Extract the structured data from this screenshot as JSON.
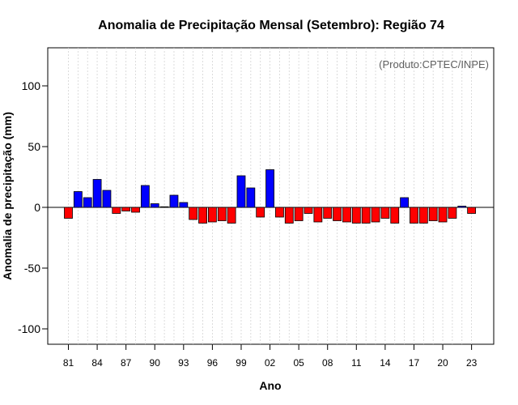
{
  "chart_data": {
    "type": "bar",
    "title": "Anomalia de Precipitação Mensal (Setembro): Região 74",
    "xlabel": "Ano",
    "ylabel": "Anomalia de precipitação (mm)",
    "annotation": "(Produto:CPTEC/INPE)",
    "ylim": [
      -113,
      132
    ],
    "yticks": [
      -100,
      -50,
      0,
      50,
      100
    ],
    "xtick_labels": [
      "81",
      "84",
      "87",
      "90",
      "93",
      "96",
      "99",
      "02",
      "05",
      "08",
      "11",
      "14",
      "17",
      "20",
      "23"
    ],
    "categories": [
      "1981",
      "1982",
      "1983",
      "1984",
      "1985",
      "1986",
      "1987",
      "1988",
      "1989",
      "1990",
      "1991",
      "1992",
      "1993",
      "1994",
      "1995",
      "1996",
      "1997",
      "1998",
      "1999",
      "2000",
      "2001",
      "2002",
      "2003",
      "2004",
      "2005",
      "2006",
      "2007",
      "2008",
      "2009",
      "2010",
      "2011",
      "2012",
      "2013",
      "2014",
      "2015",
      "2016",
      "2017",
      "2018",
      "2019",
      "2020",
      "2021",
      "2022",
      "2023"
    ],
    "values": [
      -9,
      13,
      8,
      23,
      14,
      -5,
      -3,
      -4,
      18,
      3,
      0.5,
      10,
      4,
      -10,
      -13,
      -12,
      -11,
      -13,
      26,
      16,
      -8,
      31,
      -8,
      -13,
      -11,
      -5,
      -12,
      -9,
      -11,
      -12,
      -13,
      -13,
      -12,
      -9,
      -13,
      8,
      -13,
      -13,
      -11,
      -12,
      -9,
      1,
      -5
    ],
    "grid": true,
    "legend": "none",
    "colors": {
      "positive": "#0000ff",
      "negative": "#ff0000",
      "grid": "#d3d3d3",
      "zero_line": "#000000"
    }
  }
}
